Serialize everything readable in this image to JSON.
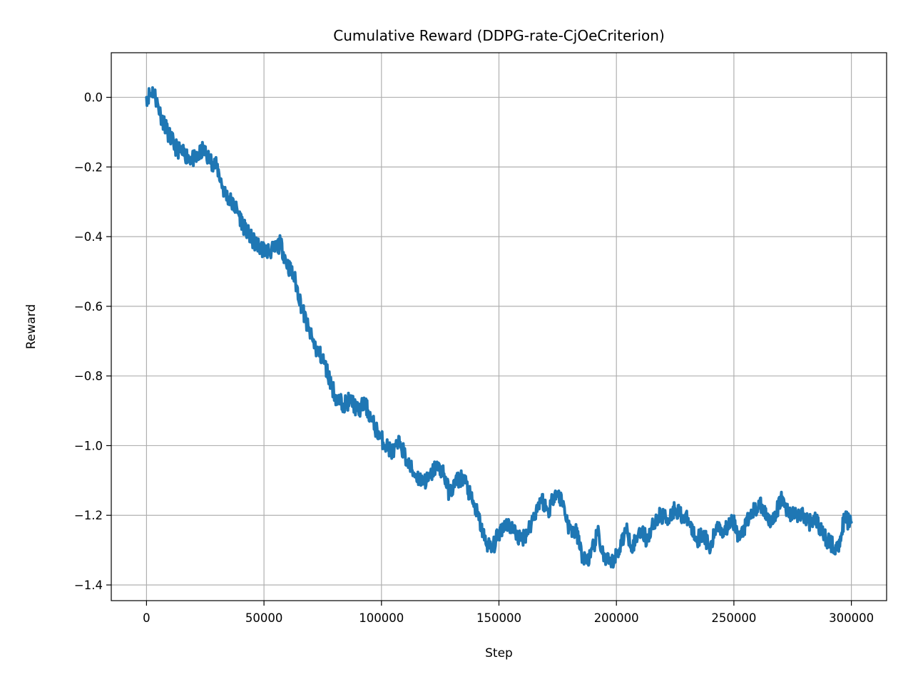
{
  "chart_data": {
    "type": "line",
    "title": "Cumulative Reward (DDPG-rate-CjOeCriterion)",
    "xlabel": "Step",
    "ylabel": "Reward",
    "xlim": [
      -15000,
      315000
    ],
    "ylim": [
      -1.445,
      0.128
    ],
    "x_ticks": [
      0,
      50000,
      100000,
      150000,
      200000,
      250000,
      300000
    ],
    "x_tick_labels": [
      "0",
      "50000",
      "100000",
      "150000",
      "200000",
      "250000",
      "300000"
    ],
    "y_ticks": [
      0.0,
      -0.2,
      -0.4,
      -0.6,
      -0.8,
      -1.0,
      -1.2,
      -1.4
    ],
    "y_tick_labels": [
      "0.0",
      "−0.2",
      "−0.4",
      "−0.6",
      "−0.8",
      "−1.0",
      "−1.2",
      "−1.4"
    ],
    "grid": true,
    "line_color": "#1f77b4",
    "series": [
      {
        "name": "",
        "x": [
          0,
          3000,
          6000,
          9000,
          12000,
          15000,
          18000,
          21000,
          24000,
          27000,
          30000,
          33000,
          36000,
          39000,
          42000,
          45000,
          48000,
          51000,
          54000,
          57000,
          60000,
          63000,
          66000,
          69000,
          72000,
          75000,
          78000,
          81000,
          84000,
          87000,
          90000,
          93000,
          96000,
          99000,
          102000,
          105000,
          108000,
          111000,
          114000,
          117000,
          120000,
          123000,
          126000,
          129000,
          132000,
          135000,
          138000,
          141000,
          144000,
          147000,
          150000,
          153000,
          156000,
          159000,
          162000,
          165000,
          168000,
          171000,
          174000,
          177000,
          180000,
          183000,
          186000,
          189000,
          192000,
          195000,
          198000,
          201000,
          204000,
          207000,
          210000,
          213000,
          216000,
          219000,
          222000,
          225000,
          228000,
          231000,
          234000,
          237000,
          240000,
          243000,
          246000,
          249000,
          252000,
          255000,
          258000,
          261000,
          264000,
          267000,
          270000,
          273000,
          276000,
          279000,
          282000,
          285000,
          288000,
          291000,
          294000,
          297000,
          300000
        ],
        "y": [
          0.0,
          0.02,
          -0.05,
          -0.1,
          -0.14,
          -0.16,
          -0.17,
          -0.18,
          -0.15,
          -0.18,
          -0.2,
          -0.27,
          -0.3,
          -0.33,
          -0.38,
          -0.41,
          -0.43,
          -0.44,
          -0.44,
          -0.42,
          -0.48,
          -0.52,
          -0.6,
          -0.67,
          -0.72,
          -0.75,
          -0.81,
          -0.87,
          -0.88,
          -0.87,
          -0.9,
          -0.88,
          -0.93,
          -0.97,
          -1.0,
          -1.02,
          -0.99,
          -1.05,
          -1.08,
          -1.1,
          -1.1,
          -1.06,
          -1.07,
          -1.14,
          -1.1,
          -1.09,
          -1.15,
          -1.2,
          -1.27,
          -1.3,
          -1.25,
          -1.22,
          -1.24,
          -1.27,
          -1.25,
          -1.2,
          -1.15,
          -1.19,
          -1.13,
          -1.16,
          -1.24,
          -1.25,
          -1.33,
          -1.32,
          -1.25,
          -1.33,
          -1.34,
          -1.3,
          -1.24,
          -1.29,
          -1.24,
          -1.27,
          -1.22,
          -1.2,
          -1.21,
          -1.18,
          -1.2,
          -1.22,
          -1.27,
          -1.25,
          -1.3,
          -1.22,
          -1.25,
          -1.2,
          -1.27,
          -1.23,
          -1.19,
          -1.17,
          -1.2,
          -1.22,
          -1.15,
          -1.19,
          -1.2,
          -1.2,
          -1.22,
          -1.21,
          -1.26,
          -1.28,
          -1.3,
          -1.21,
          -1.22
        ]
      }
    ]
  }
}
